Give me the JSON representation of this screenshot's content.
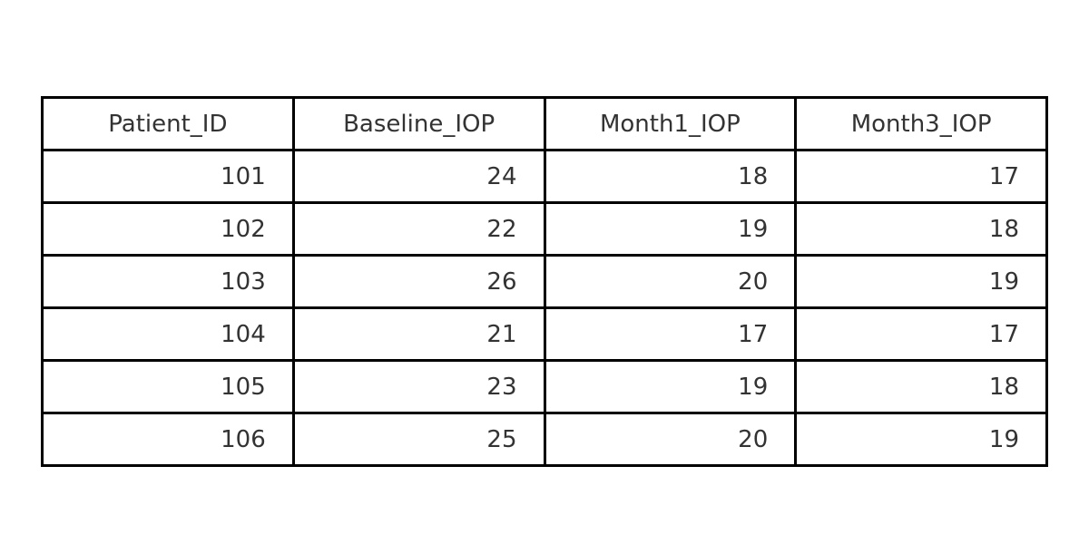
{
  "chart_data": {
    "type": "table",
    "columns": [
      "Patient_ID",
      "Baseline_IOP",
      "Month1_IOP",
      "Month3_IOP"
    ],
    "rows": [
      [
        "101",
        "24",
        "18",
        "17"
      ],
      [
        "102",
        "22",
        "19",
        "18"
      ],
      [
        "103",
        "26",
        "20",
        "19"
      ],
      [
        "104",
        "21",
        "17",
        "17"
      ],
      [
        "105",
        "23",
        "19",
        "18"
      ],
      [
        "106",
        "25",
        "20",
        "19"
      ]
    ]
  },
  "colors": {
    "border": "#000000",
    "text": "#333333",
    "background": "#ffffff"
  }
}
